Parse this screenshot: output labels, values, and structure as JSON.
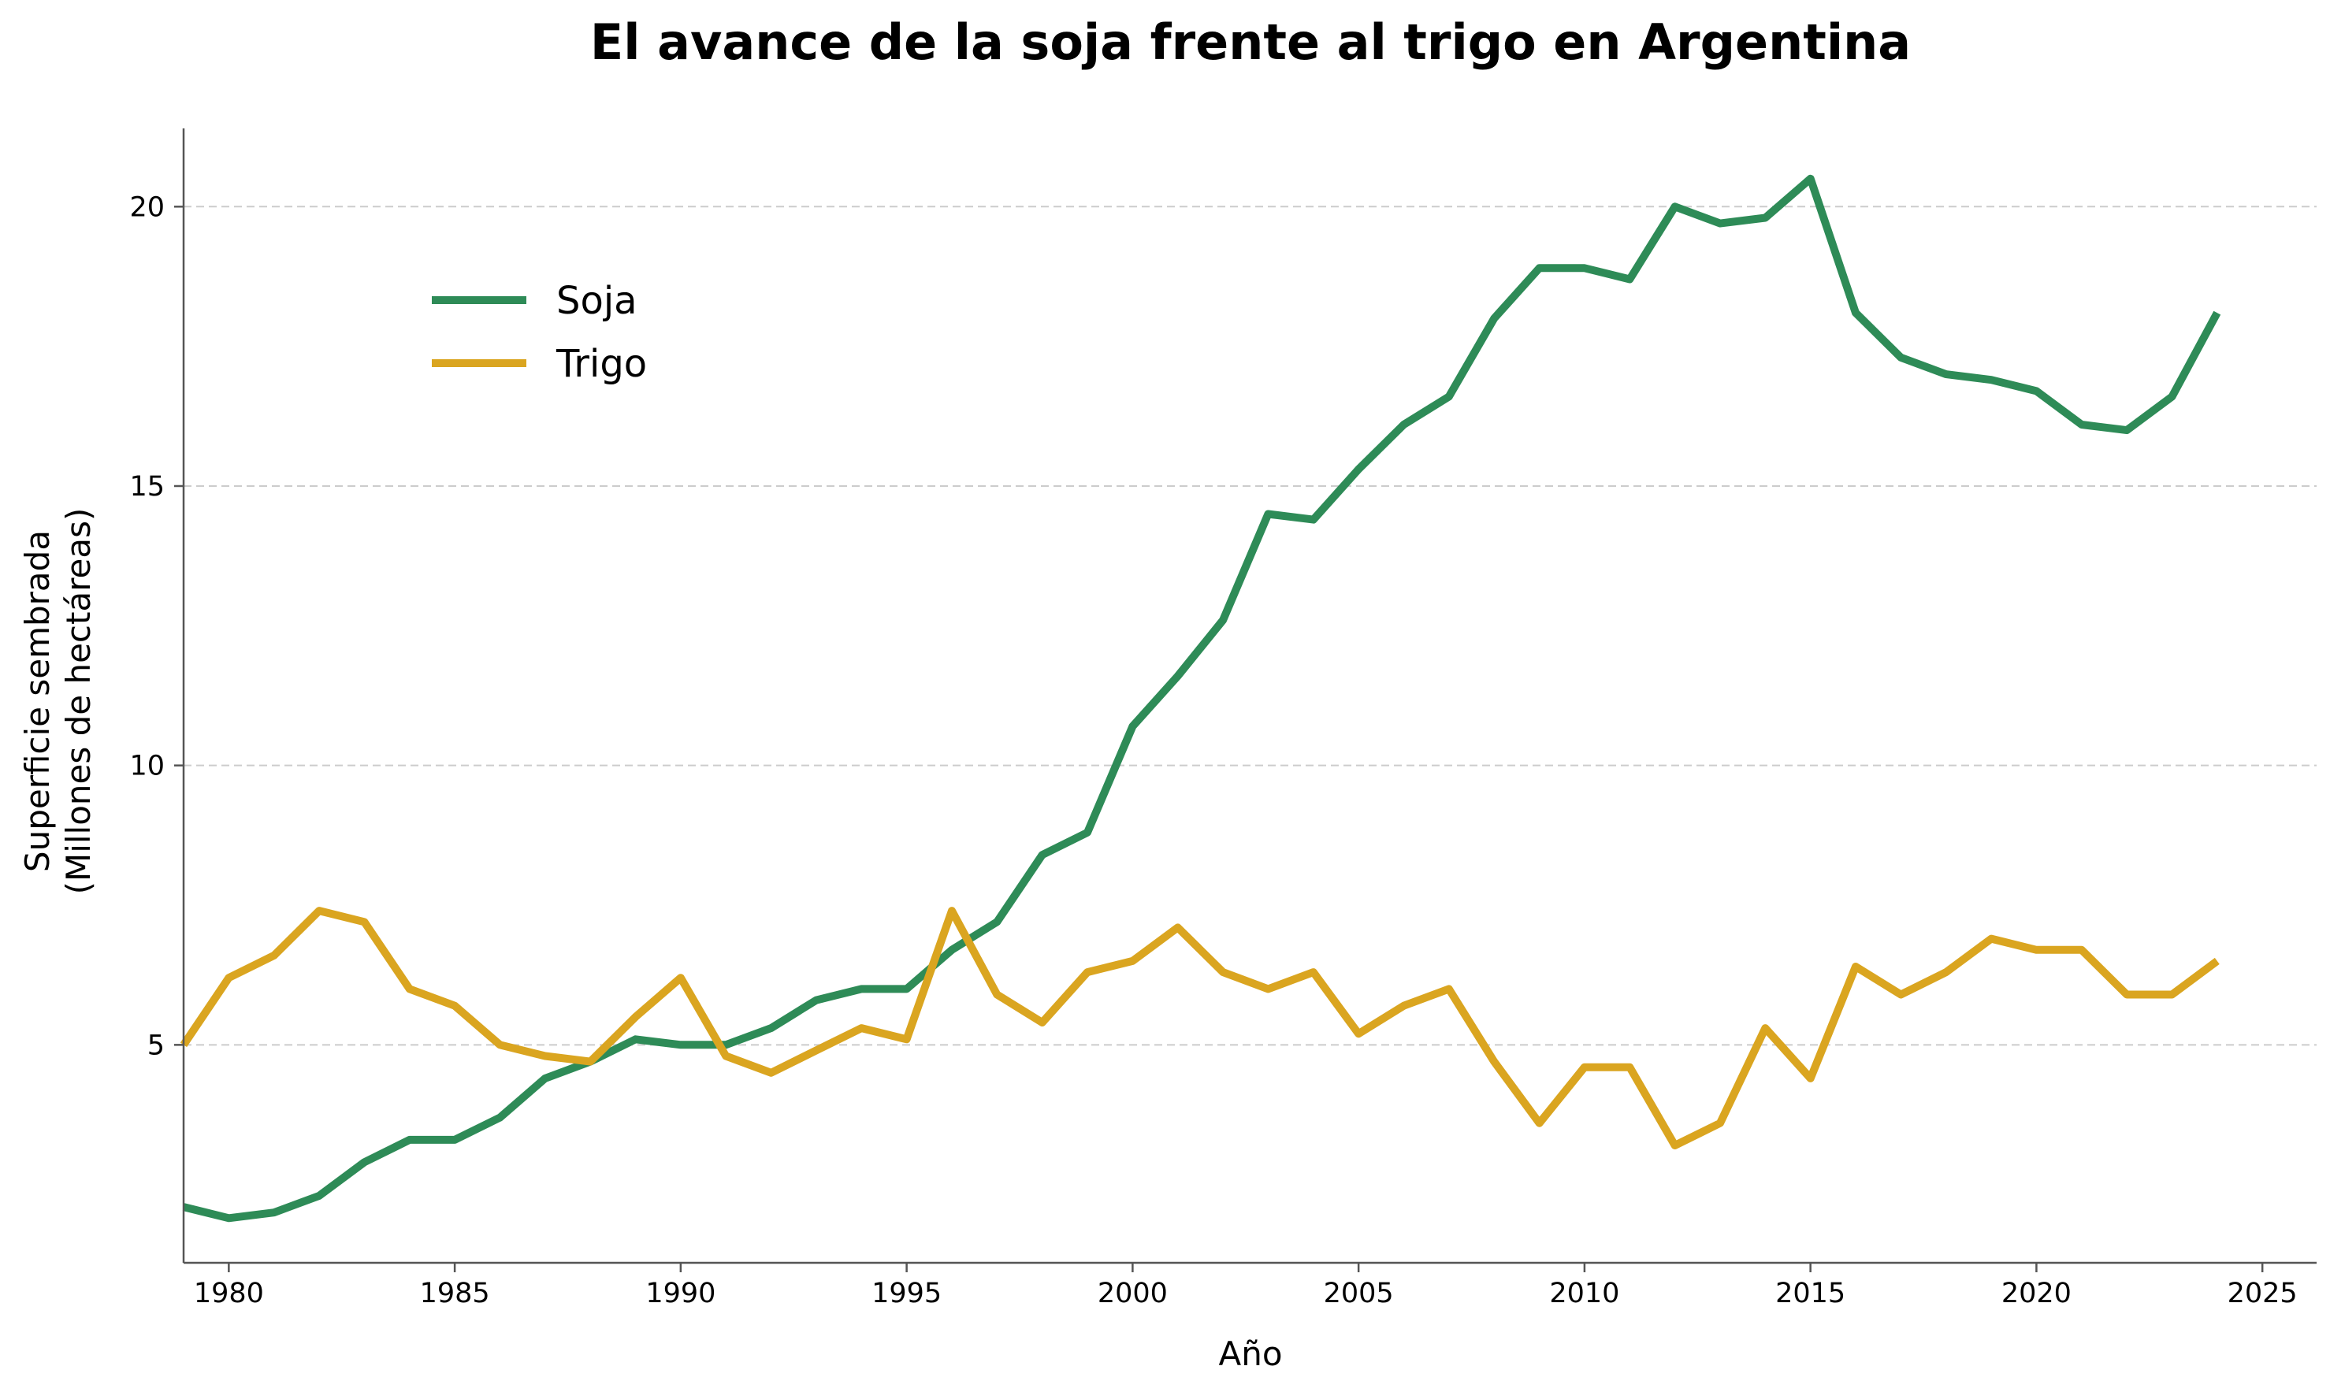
{
  "chart_data": {
    "type": "line",
    "title": "El avance de la soja frente al trigo en Argentina",
    "xlabel": "Año",
    "ylabel_lines": [
      "Superficie sembrada",
      "(Millones de hectáreas)"
    ],
    "xlim": [
      1979,
      2026.2
    ],
    "ylim": [
      1.1,
      21.4
    ],
    "xticks": [
      1980,
      1985,
      1990,
      1995,
      2000,
      2005,
      2010,
      2015,
      2020,
      2025
    ],
    "xtick_labels": [
      "1980",
      "1985",
      "1990",
      "1995",
      "2000",
      "2005",
      "2010",
      "2015",
      "2020",
      "2025"
    ],
    "yticks": [
      5,
      10,
      15,
      20
    ],
    "ytick_labels": [
      "5",
      "10",
      "15",
      "20"
    ],
    "grid": "horizontal dashed",
    "legend_position": "upper-left",
    "x": [
      1979,
      1980,
      1981,
      1982,
      1983,
      1984,
      1985,
      1986,
      1987,
      1988,
      1989,
      1990,
      1991,
      1992,
      1993,
      1994,
      1995,
      1996,
      1997,
      1998,
      1999,
      2000,
      2001,
      2002,
      2003,
      2004,
      2005,
      2006,
      2007,
      2008,
      2009,
      2010,
      2011,
      2012,
      2013,
      2014,
      2015,
      2016,
      2017,
      2018,
      2019,
      2020,
      2021,
      2022,
      2023,
      2024
    ],
    "series": [
      {
        "name": "Soja",
        "color": "#2e8b57",
        "values": [
          2.1,
          1.9,
          2.0,
          2.3,
          2.9,
          3.3,
          3.3,
          3.7,
          4.4,
          4.7,
          5.1,
          5.0,
          5.0,
          5.3,
          5.8,
          6.0,
          6.0,
          6.7,
          7.2,
          8.4,
          8.8,
          10.7,
          11.6,
          12.6,
          14.5,
          14.4,
          15.3,
          16.1,
          16.6,
          18.0,
          18.9,
          18.9,
          18.7,
          20.0,
          19.7,
          19.8,
          20.5,
          18.1,
          17.3,
          17.0,
          16.9,
          16.7,
          16.1,
          16.0,
          16.6,
          18.1
        ]
      },
      {
        "name": "Trigo",
        "color": "#daa520",
        "values": [
          5.0,
          6.2,
          6.6,
          7.4,
          7.2,
          6.0,
          5.7,
          5.0,
          4.8,
          4.7,
          5.5,
          6.2,
          4.8,
          4.5,
          4.9,
          5.3,
          5.1,
          7.4,
          5.9,
          5.4,
          6.3,
          6.5,
          7.1,
          6.3,
          6.0,
          6.3,
          5.2,
          5.7,
          6.0,
          4.7,
          3.6,
          4.6,
          4.6,
          3.2,
          3.6,
          5.3,
          4.4,
          6.4,
          5.9,
          6.3,
          6.9,
          6.7,
          6.7,
          5.9,
          5.9,
          6.5
        ]
      }
    ]
  }
}
